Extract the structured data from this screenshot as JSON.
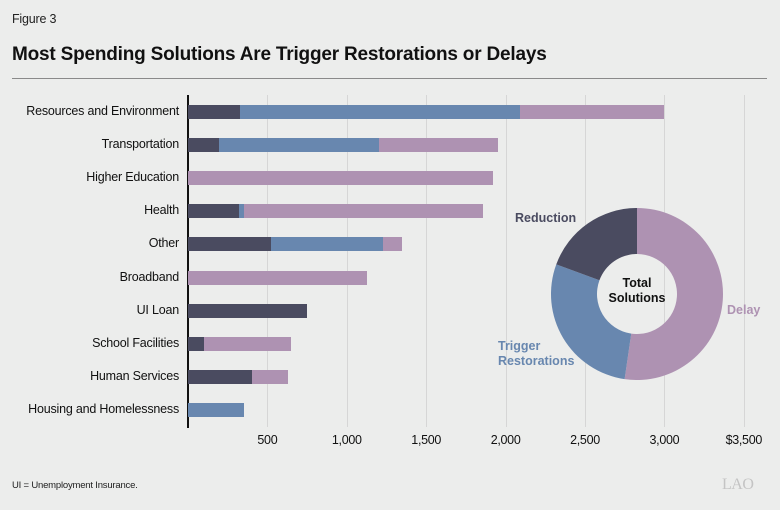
{
  "figure_label": "Figure 3",
  "title": "Most Spending Solutions Are Trigger Restorations or Delays",
  "note": "UI = Unemployment Insurance.",
  "logo": "LAO",
  "colors": {
    "background": "#ECEDEC",
    "reduction": "#4A4B60",
    "trigger": "#6887AF",
    "delay": "#AE92B2"
  },
  "chart_data": [
    {
      "type": "bar",
      "orientation": "horizontal",
      "stacked": true,
      "title": "Most Spending Solutions Are Trigger Restorations or Delays",
      "xlabel": "",
      "ylabel": "",
      "xlim": [
        0,
        3500
      ],
      "x_ticks": [
        "500",
        "1,000",
        "1,500",
        "2,000",
        "2,500",
        "3,000",
        "$3,500"
      ],
      "x_tick_values": [
        500,
        1000,
        1500,
        2000,
        2500,
        3000,
        3500
      ],
      "grid": true,
      "categories": [
        "Resources and Environment",
        "Transportation",
        "Higher Education",
        "Health",
        "Other",
        "Broadband",
        "UI Loan",
        "School Facilities",
        "Human Services",
        "Housing and Homelessness"
      ],
      "series": [
        {
          "name": "Reduction",
          "color": "#4A4B60",
          "values": [
            330,
            195,
            0,
            320,
            525,
            0,
            750,
            100,
            400,
            0
          ]
        },
        {
          "name": "Trigger Restorations",
          "color": "#6887AF",
          "values": [
            1760,
            1010,
            0,
            30,
            705,
            0,
            0,
            0,
            0,
            350
          ]
        },
        {
          "name": "Delay",
          "color": "#AE92B2",
          "values": [
            910,
            745,
            1920,
            1505,
            120,
            1130,
            0,
            550,
            230,
            0
          ]
        }
      ],
      "totals": [
        3000,
        1950,
        1920,
        1855,
        1350,
        1130,
        750,
        650,
        630,
        350
      ]
    },
    {
      "type": "pie",
      "style": "donut",
      "center_label": "Total Solutions",
      "categories": [
        "Delay",
        "Trigger Restorations",
        "Reduction"
      ],
      "values": [
        52.3,
        28.3,
        19.4
      ],
      "unit": "percent (estimated)",
      "colors": [
        "#AE92B2",
        "#6887AF",
        "#4A4B60"
      ]
    }
  ],
  "donut": {
    "center_line1": "Total",
    "center_line2": "Solutions",
    "label_reduction": "Reduction",
    "label_trigger_line1": "Trigger",
    "label_trigger_line2": "Restorations",
    "label_delay": "Delay"
  }
}
